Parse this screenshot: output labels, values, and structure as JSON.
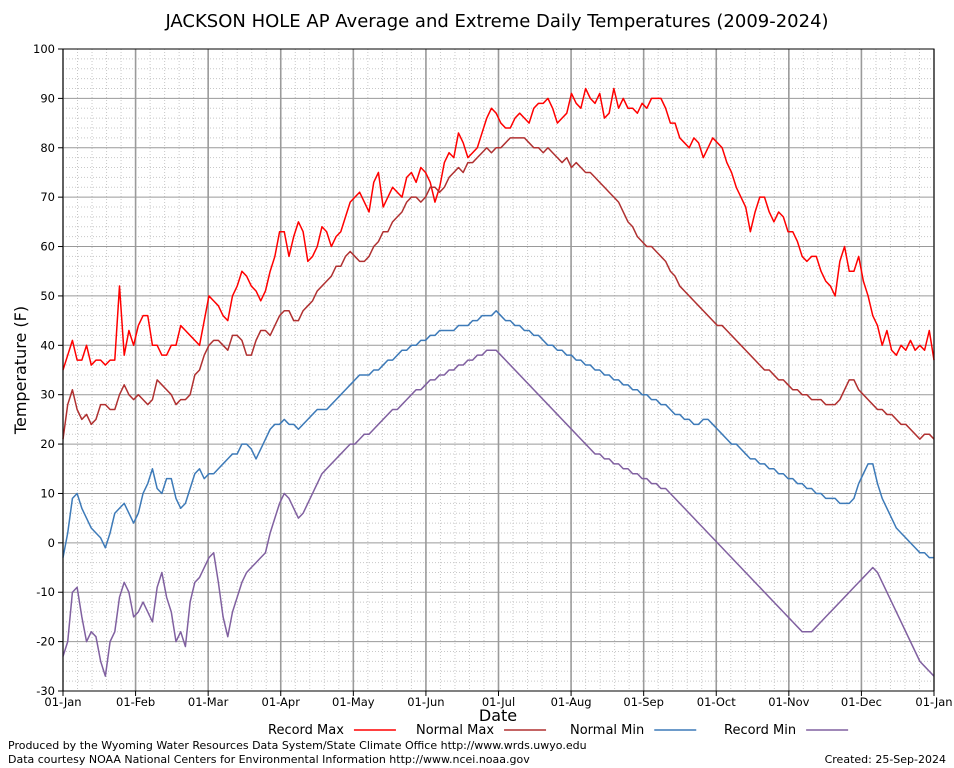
{
  "chart_data": {
    "type": "line",
    "title": "JACKSON HOLE AP Average and Extreme Daily Temperatures (2009-2024)",
    "xlabel": "Date",
    "ylabel": "Temperature (F)",
    "ylim": [
      -30,
      100
    ],
    "yticks": [
      -30,
      -20,
      -10,
      0,
      10,
      20,
      30,
      40,
      50,
      60,
      70,
      80,
      90,
      100
    ],
    "x_tick_labels": [
      "01-Jan",
      "01-Feb",
      "01-Mar",
      "01-Apr",
      "01-May",
      "01-Jun",
      "01-Jul",
      "01-Aug",
      "01-Sep",
      "01-Oct",
      "01-Nov",
      "01-Dec",
      "01-Jan"
    ],
    "grid": true,
    "legend_position": "bottom",
    "series": [
      {
        "name": "Record Max",
        "color": "#ff0000",
        "values": [
          35,
          38,
          41,
          37,
          37,
          40,
          36,
          37,
          37,
          36,
          37,
          37,
          52,
          38,
          43,
          40,
          44,
          46,
          46,
          40,
          40,
          38,
          38,
          40,
          40,
          44,
          43,
          42,
          41,
          40,
          45,
          50,
          49,
          48,
          46,
          45,
          50,
          52,
          55,
          54,
          52,
          51,
          49,
          51,
          55,
          58,
          63,
          63,
          58,
          62,
          65,
          63,
          57,
          58,
          60,
          64,
          63,
          60,
          62,
          63,
          66,
          69,
          70,
          71,
          69,
          67,
          73,
          75,
          68,
          70,
          72,
          71,
          70,
          74,
          75,
          73,
          76,
          75,
          73,
          69,
          72,
          77,
          79,
          78,
          83,
          81,
          78,
          79,
          80,
          83,
          86,
          88,
          87,
          85,
          84,
          84,
          86,
          87,
          86,
          85,
          88,
          89,
          89,
          90,
          88,
          85,
          86,
          87,
          91,
          89,
          88,
          92,
          90,
          89,
          91,
          86,
          87,
          92,
          88,
          90,
          88,
          88,
          87,
          89,
          88,
          90,
          90,
          90,
          88,
          85,
          85,
          82,
          81,
          80,
          82,
          81,
          78,
          80,
          82,
          81,
          80,
          77,
          75,
          72,
          70,
          68,
          63,
          67,
          70,
          70,
          67,
          65,
          67,
          66,
          63,
          63,
          61,
          58,
          57,
          58,
          58,
          55,
          53,
          52,
          50,
          57,
          60,
          55,
          55,
          58,
          53,
          50,
          46,
          44,
          40,
          43,
          39,
          38,
          40,
          39,
          41,
          39,
          40,
          39,
          43,
          37
        ]
      },
      {
        "name": "Normal Max",
        "color": "#b03030",
        "values": [
          21,
          28,
          31,
          27,
          25,
          26,
          24,
          25,
          28,
          28,
          27,
          27,
          30,
          32,
          30,
          29,
          30,
          29,
          28,
          29,
          33,
          32,
          31,
          30,
          28,
          29,
          29,
          30,
          34,
          35,
          38,
          40,
          41,
          41,
          40,
          39,
          42,
          42,
          41,
          38,
          38,
          41,
          43,
          43,
          42,
          44,
          46,
          47,
          47,
          45,
          45,
          47,
          48,
          49,
          51,
          52,
          53,
          54,
          56,
          56,
          58,
          59,
          58,
          57,
          57,
          58,
          60,
          61,
          63,
          63,
          65,
          66,
          67,
          69,
          70,
          70,
          69,
          70,
          72,
          72,
          71,
          72,
          74,
          75,
          76,
          75,
          77,
          77,
          78,
          79,
          80,
          79,
          80,
          80,
          81,
          82,
          82,
          82,
          82,
          81,
          80,
          80,
          79,
          80,
          79,
          78,
          77,
          78,
          76,
          77,
          76,
          75,
          75,
          74,
          73,
          72,
          71,
          70,
          69,
          67,
          65,
          64,
          62,
          61,
          60,
          60,
          59,
          58,
          57,
          55,
          54,
          52,
          51,
          50,
          49,
          48,
          47,
          46,
          45,
          44,
          44,
          43,
          42,
          41,
          40,
          39,
          38,
          37,
          36,
          35,
          35,
          34,
          33,
          33,
          32,
          31,
          31,
          30,
          30,
          29,
          29,
          29,
          28,
          28,
          28,
          29,
          31,
          33,
          33,
          31,
          30,
          29,
          28,
          27,
          27,
          26,
          26,
          25,
          24,
          24,
          23,
          22,
          21,
          22,
          22,
          21
        ]
      },
      {
        "name": "Normal Min",
        "color": "#3d7ab8",
        "values": [
          -3,
          2,
          9,
          10,
          7,
          5,
          3,
          2,
          1,
          -1,
          2,
          6,
          7,
          8,
          6,
          4,
          6,
          10,
          12,
          15,
          11,
          10,
          13,
          13,
          9,
          7,
          8,
          11,
          14,
          15,
          13,
          14,
          14,
          15,
          16,
          17,
          18,
          18,
          20,
          20,
          19,
          17,
          19,
          21,
          23,
          24,
          24,
          25,
          24,
          24,
          23,
          24,
          25,
          26,
          27,
          27,
          27,
          28,
          29,
          30,
          31,
          32,
          33,
          34,
          34,
          34,
          35,
          35,
          36,
          37,
          37,
          38,
          39,
          39,
          40,
          40,
          41,
          41,
          42,
          42,
          43,
          43,
          43,
          43,
          44,
          44,
          44,
          45,
          45,
          46,
          46,
          46,
          47,
          46,
          45,
          45,
          44,
          44,
          43,
          43,
          42,
          42,
          41,
          40,
          40,
          39,
          39,
          38,
          38,
          37,
          37,
          36,
          36,
          35,
          35,
          34,
          34,
          33,
          33,
          32,
          32,
          31,
          31,
          30,
          30,
          29,
          29,
          28,
          28,
          27,
          26,
          26,
          25,
          25,
          24,
          24,
          25,
          25,
          24,
          23,
          22,
          21,
          20,
          20,
          19,
          18,
          17,
          17,
          16,
          16,
          15,
          15,
          14,
          14,
          13,
          13,
          12,
          12,
          11,
          11,
          10,
          10,
          9,
          9,
          9,
          8,
          8,
          8,
          9,
          12,
          14,
          16,
          16,
          12,
          9,
          7,
          5,
          3,
          2,
          1,
          0,
          -1,
          -2,
          -2,
          -3,
          -3
        ]
      },
      {
        "name": "Record Min",
        "color": "#8060a0",
        "values": [
          -23,
          -20,
          -10,
          -9,
          -15,
          -20,
          -18,
          -19,
          -24,
          -27,
          -20,
          -18,
          -11,
          -8,
          -10,
          -15,
          -14,
          -12,
          -14,
          -16,
          -9,
          -6,
          -11,
          -14,
          -20,
          -18,
          -21,
          -12,
          -8,
          -7,
          -5,
          -3,
          -2,
          -8,
          -15,
          -19,
          -14,
          -11,
          -8,
          -6,
          -5,
          -4,
          -3,
          -2,
          2,
          5,
          8,
          10,
          9,
          7,
          5,
          6,
          8,
          10,
          12,
          14,
          15,
          16,
          17,
          18,
          19,
          20,
          20,
          21,
          22,
          22,
          23,
          24,
          25,
          26,
          27,
          27,
          28,
          29,
          30,
          31,
          31,
          32,
          33,
          33,
          34,
          34,
          35,
          35,
          36,
          36,
          37,
          37,
          38,
          38,
          39,
          39,
          39,
          38,
          37,
          36,
          35,
          34,
          33,
          32,
          31,
          30,
          29,
          28,
          27,
          26,
          25,
          24,
          23,
          22,
          21,
          20,
          19,
          18,
          18,
          17,
          17,
          16,
          16,
          15,
          15,
          14,
          14,
          13,
          13,
          12,
          12,
          11,
          11,
          10,
          9,
          8,
          7,
          6,
          5,
          4,
          3,
          2,
          1,
          0,
          -1,
          -2,
          -3,
          -4,
          -5,
          -6,
          -7,
          -8,
          -9,
          -10,
          -11,
          -12,
          -13,
          -14,
          -15,
          -16,
          -17,
          -18,
          -18,
          -18,
          -17,
          -16,
          -15,
          -14,
          -13,
          -12,
          -11,
          -10,
          -9,
          -8,
          -7,
          -6,
          -5,
          -6,
          -8,
          -10,
          -12,
          -14,
          -16,
          -18,
          -20,
          -22,
          -24,
          -25,
          -26,
          -27
        ]
      }
    ],
    "credits": [
      "Produced by the Wyoming Water Resources Data System/State Climate Office http://www.wrds.uwyo.edu",
      "Data courtesy NOAA National Centers for Environmental Information http://www.ncei.noaa.gov"
    ],
    "created": "Created: 25-Sep-2024"
  }
}
